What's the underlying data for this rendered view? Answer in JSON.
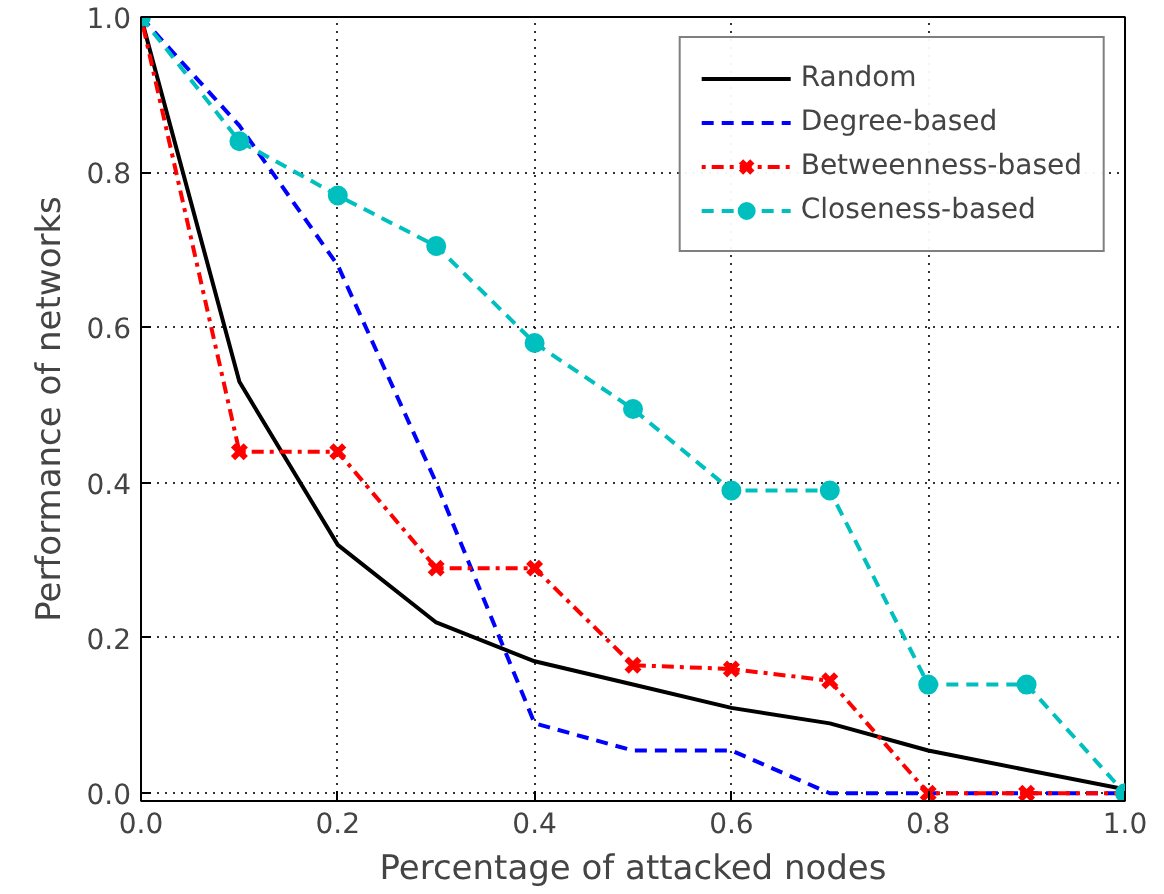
{
  "chart_data": {
    "type": "line",
    "xlabel": "Percentage of attacked nodes",
    "ylabel": "Performance of networks",
    "x": [
      0,
      0.1,
      0.2,
      0.3,
      0.4,
      0.5,
      0.6,
      0.7,
      0.8,
      0.9,
      1.0
    ],
    "xlim": [
      0,
      1.0
    ],
    "ylim": [
      -0.01,
      1.0
    ],
    "xticks": [
      {
        "value": 0,
        "label": "0.0"
      },
      0.2,
      0.4,
      0.6,
      0.8,
      {
        "value": 1.0,
        "label": "1.0"
      }
    ],
    "yticks": [
      {
        "value": 0,
        "label": "0.0"
      },
      0.2,
      0.4,
      0.6,
      0.8,
      {
        "value": 1.0,
        "label": "1.0"
      }
    ],
    "grid": true,
    "legend": "top right",
    "series": [
      {
        "name": "Random",
        "color": "#000000",
        "line_style": "solid",
        "marker": "none",
        "values": [
          1.0,
          0.53,
          0.32,
          0.22,
          0.17,
          0.14,
          0.11,
          0.09,
          0.055,
          0.03,
          0.005
        ]
      },
      {
        "name": "Degree-based",
        "color": "#0000ff",
        "line_style": "dashed",
        "marker": "none",
        "values": [
          1.0,
          0.86,
          0.68,
          0.4,
          0.09,
          0.055,
          0.055,
          0,
          0,
          0,
          0
        ]
      },
      {
        "name": "Betweenness-based",
        "color": "#ff0000",
        "line_style": "dotted",
        "marker": "cross",
        "values": [
          1.0,
          0.44,
          0.44,
          0.29,
          0.29,
          0.165,
          0.16,
          0.145,
          0,
          0,
          0
        ]
      },
      {
        "name": "Closeness-based",
        "color": "#00bfbf",
        "line_style": "dashed",
        "marker": "circle",
        "values": [
          1.0,
          0.84,
          0.77,
          0.705,
          0.58,
          0.495,
          0.39,
          0.39,
          0.14,
          0.14,
          0.0
        ]
      }
    ]
  }
}
